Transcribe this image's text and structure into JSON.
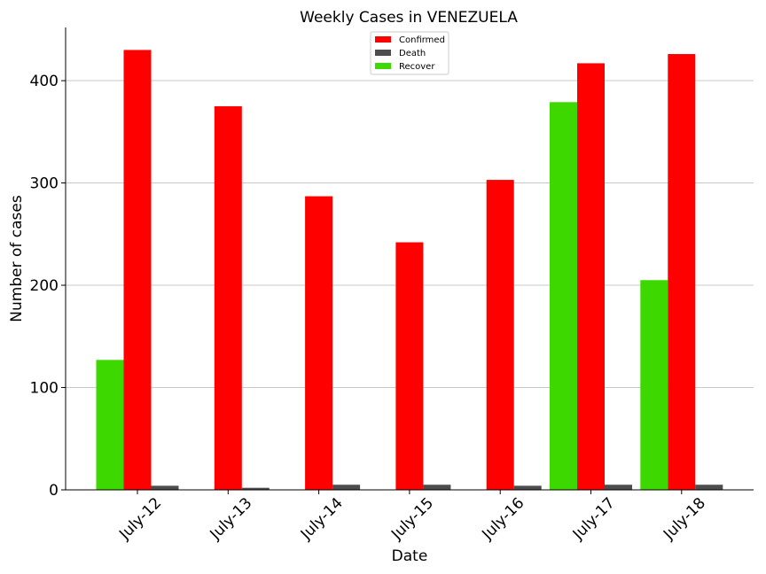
{
  "chart_data": {
    "type": "bar",
    "title": "Weekly Cases in VENEZUELA",
    "xlabel": "Date",
    "ylabel": "Number of cases",
    "categories": [
      "July-12",
      "July-13",
      "July-14",
      "July-15",
      "July-16",
      "July-17",
      "July-18"
    ],
    "series": [
      {
        "name": "Recover",
        "color": "#3dd800",
        "values": [
          127,
          0,
          0,
          0,
          0,
          379,
          205
        ]
      },
      {
        "name": "Confirmed",
        "color": "#ff0000",
        "values": [
          430,
          375,
          287,
          242,
          303,
          417,
          426
        ]
      },
      {
        "name": "Death",
        "color": "#4d4d4d",
        "values": [
          4,
          2,
          5,
          5,
          4,
          5,
          5
        ]
      }
    ],
    "legend_order": [
      "Confirmed",
      "Death",
      "Recover"
    ],
    "ylim": [
      0,
      452
    ],
    "yticks": [
      0,
      100,
      200,
      300,
      400
    ],
    "grid": "horizontal",
    "legend_position": "top-center"
  }
}
